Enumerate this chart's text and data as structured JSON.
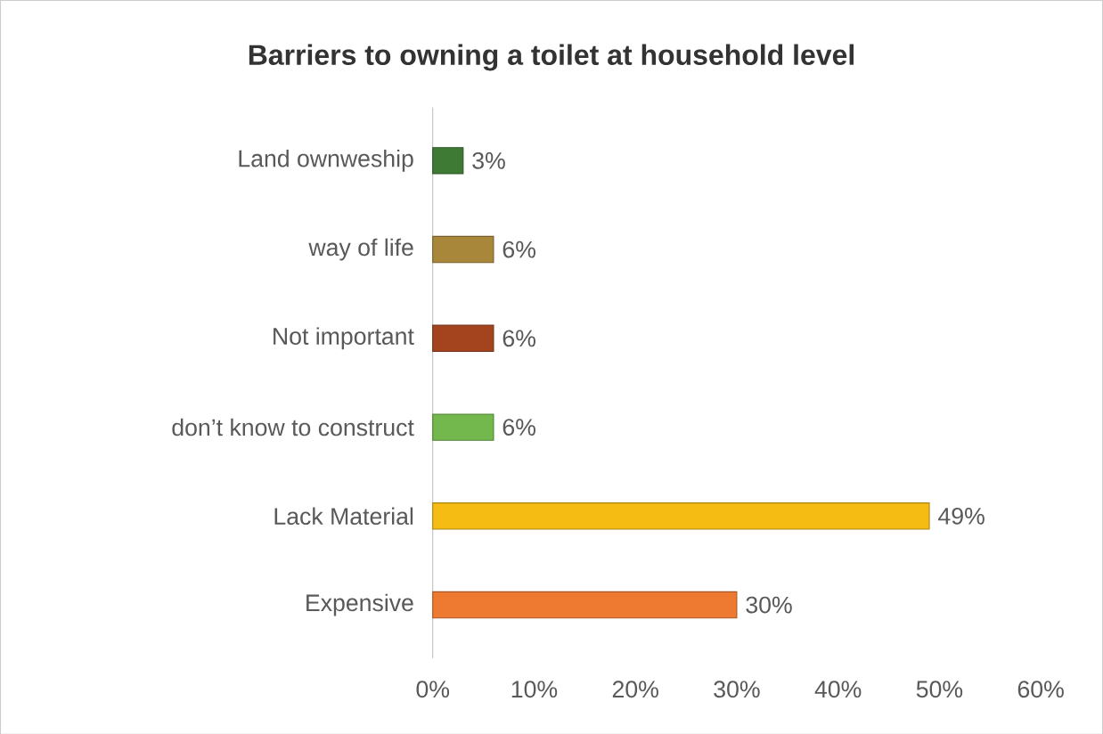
{
  "chart_data": {
    "type": "bar",
    "orientation": "horizontal",
    "title": "Barriers to owning a toilet at household level",
    "categories": [
      "Land ownweship",
      "way of life",
      "Not important",
      "don’t know to construct",
      "Lack Material",
      "Expensive"
    ],
    "values": [
      3,
      6,
      6,
      6,
      49,
      30
    ],
    "colors": [
      "#3f7a35",
      "#a8873a",
      "#a4441f",
      "#72b84c",
      "#f5bd13",
      "#ed7a30"
    ],
    "value_labels": [
      "3%",
      "6%",
      "6%",
      "6%",
      "49%",
      "30%"
    ],
    "xlim": [
      0,
      60
    ],
    "xticks": [
      {
        "value": 0,
        "label": "0%"
      },
      {
        "value": 10,
        "label": "10%"
      },
      {
        "value": 20,
        "label": "20%"
      },
      {
        "value": 30,
        "label": "30%"
      },
      {
        "value": 40,
        "label": "40%"
      },
      {
        "value": 50,
        "label": "50%"
      },
      {
        "value": 60,
        "label": "60%"
      }
    ],
    "grid": false
  }
}
